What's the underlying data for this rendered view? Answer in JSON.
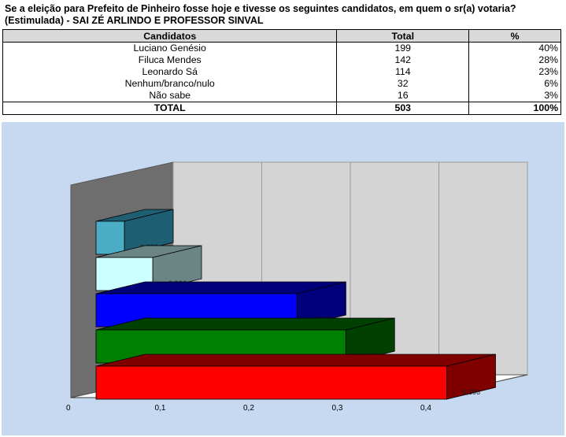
{
  "question": "Se a eleição para Prefeito de Pinheiro fosse hoje e tivesse os seguintes candidatos, em quem o sr(a) votaria? (Estimulada) - SAI ZÉ ARLINDO E PROFESSOR SINVAL",
  "table": {
    "headers": [
      "Candidatos",
      "Total",
      "%"
    ],
    "rows": [
      {
        "name": "Luciano Genésio",
        "total": "199",
        "pct": "40%"
      },
      {
        "name": "Filuca Mendes",
        "total": "142",
        "pct": "28%"
      },
      {
        "name": "Leonardo Sá",
        "total": "114",
        "pct": "23%"
      },
      {
        "name": "Nenhum/branco/nulo",
        "total": "32",
        "pct": "6%"
      },
      {
        "name": "Não sabe",
        "total": "16",
        "pct": "3%"
      }
    ],
    "total_row": {
      "name": "TOTAL",
      "total": "503",
      "pct": "100%"
    }
  },
  "chart_data": {
    "type": "bar",
    "orientation": "horizontal",
    "style": "3d",
    "x_ticks": [
      "0",
      "0,1",
      "0,2",
      "0,3",
      "0,4"
    ],
    "xlim": [
      0,
      0.4
    ],
    "grid": true,
    "bars": [
      {
        "value": 0.032,
        "label": "0,032",
        "color": "#4bacc6",
        "side_color": "#1f5f73"
      },
      {
        "value": 0.064,
        "label": "0,064",
        "color": "#ccffff",
        "side_color": "#6b8585"
      },
      {
        "value": 0.227,
        "label": "0,227",
        "color": "#0000ff",
        "side_color": "#00007a"
      },
      {
        "value": 0.282,
        "label": "0,282",
        "color": "#008000",
        "side_color": "#004000"
      },
      {
        "value": 0.396,
        "label": "0,396",
        "color": "#ff0000",
        "side_color": "#800000"
      }
    ],
    "colors": {
      "wall": "#d4d4d4",
      "side_wall": "#6e6e6e",
      "floor": "#ffffff",
      "background": "#c6d9f0"
    }
  }
}
